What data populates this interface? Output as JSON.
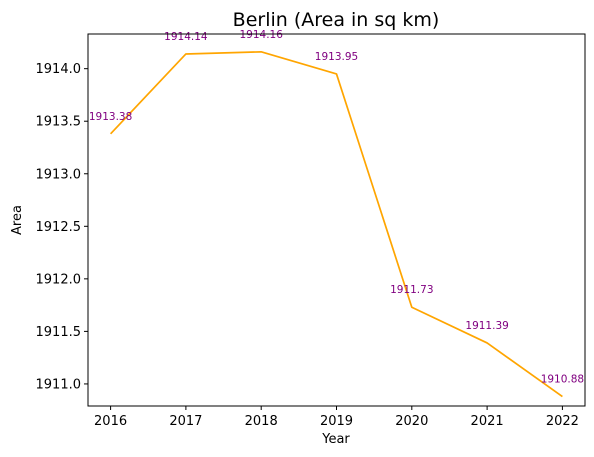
{
  "chart_data": {
    "type": "line",
    "title": "Berlin (Area in sq km)",
    "xlabel": "Year",
    "ylabel": "Area",
    "x": [
      2016,
      2017,
      2018,
      2019,
      2020,
      2021,
      2022
    ],
    "x_tick_labels": [
      "2016",
      "2017",
      "2018",
      "2019",
      "2020",
      "2021",
      "2022"
    ],
    "series": [
      {
        "values": [
          1913.38,
          1914.14,
          1914.16,
          1913.95,
          1911.73,
          1911.39,
          1910.88
        ]
      }
    ],
    "data_labels": [
      "1913.38",
      "1914.14",
      "1914.16",
      "1913.95",
      "1911.73",
      "1911.39",
      "1910.88"
    ],
    "y_ticks": [
      1911.0,
      1911.5,
      1912.0,
      1912.5,
      1913.0,
      1913.5,
      1914.0
    ],
    "y_tick_labels": [
      "1911.0",
      "1911.5",
      "1912.0",
      "1912.5",
      "1913.0",
      "1913.5",
      "1914.0"
    ],
    "xlim": [
      2015.7,
      2022.3
    ],
    "ylim": [
      1910.79,
      1914.33
    ],
    "grid": false,
    "colors": {
      "line": "#ffa500",
      "data_label": "#800080",
      "axis": "#000000"
    }
  }
}
